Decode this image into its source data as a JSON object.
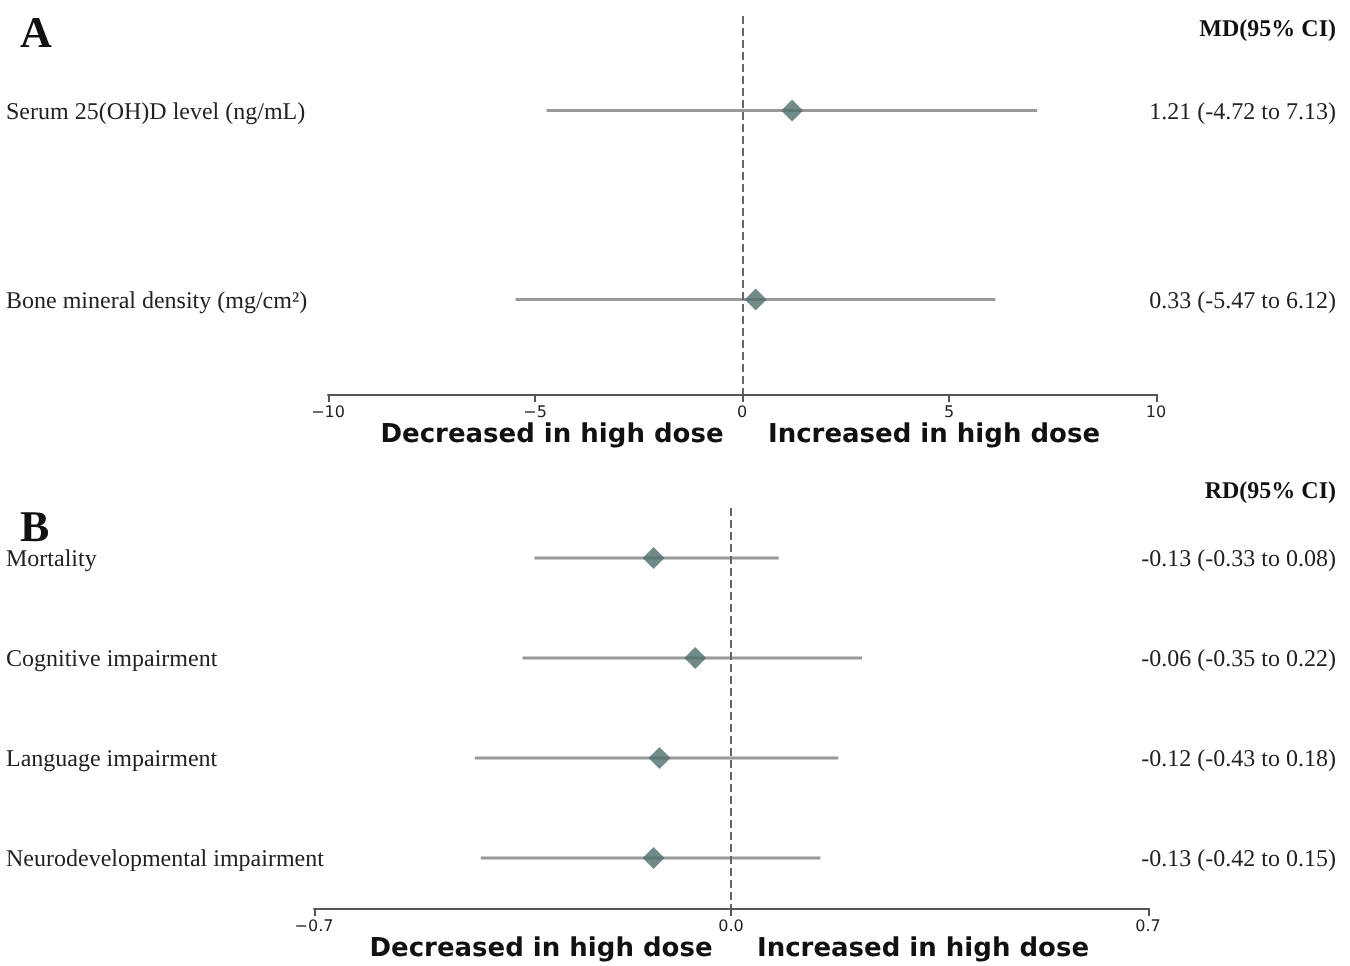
{
  "chart_data": [
    {
      "type": "scatter",
      "orientation": "horizontal",
      "title": "A",
      "categories": [
        "Serum 25(OH)D level (ng/mL)",
        "Bone mineral density (mg/cm²)"
      ],
      "values": [
        1.21,
        0.33
      ],
      "errors": [
        [
          -4.72,
          7.13
        ],
        [
          -5.47,
          6.12
        ]
      ],
      "value_labels": [
        "1.21 (-4.72 to 7.13)",
        "0.33 (-5.47 to 6.12)"
      ],
      "color": "#4d6e6b",
      "marker": "diamond",
      "xlim": [
        -10,
        10
      ],
      "xticks": [
        {
          "value": -10,
          "label": "−10"
        },
        {
          "value": -5,
          "label": "−5"
        },
        0,
        5,
        10
      ],
      "ref_lines": [
        {
          "axis": "x",
          "value": 0,
          "line_style": "dashed"
        }
      ],
      "annotations": [
        "MD(95% CI)",
        "Decreased in high dose",
        "Increased in high dose"
      ]
    },
    {
      "type": "scatter",
      "orientation": "horizontal",
      "title": "B",
      "categories": [
        "Mortality",
        "Cognitive impairment",
        "Language impairment",
        "Neurodevelopmental impairment"
      ],
      "values": [
        -0.13,
        -0.06,
        -0.12,
        -0.13
      ],
      "errors": [
        [
          -0.33,
          0.08
        ],
        [
          -0.35,
          0.22
        ],
        [
          -0.43,
          0.18
        ],
        [
          -0.42,
          0.15
        ]
      ],
      "value_labels": [
        "-0.13 (-0.33 to 0.08)",
        "-0.06 (-0.35 to 0.22)",
        "-0.12 (-0.43 to 0.18)",
        "-0.13 (-0.42 to 0.15)"
      ],
      "color": "#4d6e6b",
      "marker": "diamond",
      "xlim": [
        -0.7,
        0.7
      ],
      "xticks": [
        {
          "value": -0.7,
          "label": "−0.7"
        },
        {
          "value": 0,
          "label": "0.0"
        },
        0.7
      ],
      "ref_lines": [
        {
          "axis": "x",
          "value": 0,
          "line_style": "dashed"
        }
      ],
      "annotations": [
        "RD(95% CI)",
        "Decreased in high dose",
        "Increased in high dose"
      ]
    }
  ]
}
